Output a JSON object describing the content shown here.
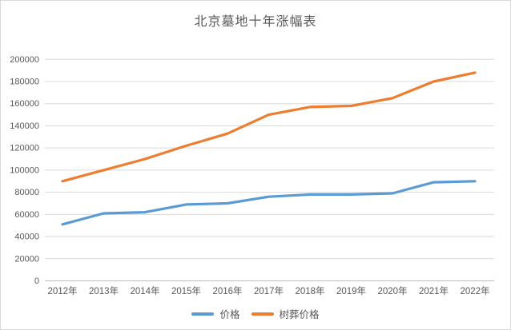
{
  "chart_data": {
    "type": "line",
    "title": "北京墓地十年涨幅表",
    "categories": [
      "2012年",
      "2013年",
      "2014年",
      "2015年",
      "2016年",
      "2017年",
      "2018年",
      "2019年",
      "2020年",
      "2021年",
      "2022年"
    ],
    "series": [
      {
        "name": "价格",
        "color": "#5b9bd5",
        "values": [
          51000,
          61000,
          62000,
          69000,
          70000,
          76000,
          78000,
          78000,
          79000,
          89000,
          90000
        ]
      },
      {
        "name": "树葬价格",
        "color": "#ed7d31",
        "values": [
          90000,
          100000,
          110000,
          122000,
          133000,
          150000,
          157000,
          158000,
          165000,
          180000,
          188000
        ]
      }
    ],
    "ylim": [
      0,
      200000
    ],
    "ytick_step": 20000,
    "ytick_labels": [
      "0",
      "20000",
      "40000",
      "60000",
      "80000",
      "100000",
      "120000",
      "140000",
      "160000",
      "180000",
      "200000"
    ],
    "grid": true,
    "legend_position": "bottom",
    "gridline_color": "#d9d9d9",
    "axis_line_color": "#bfbfbf",
    "axis_text_color": "#595959"
  }
}
